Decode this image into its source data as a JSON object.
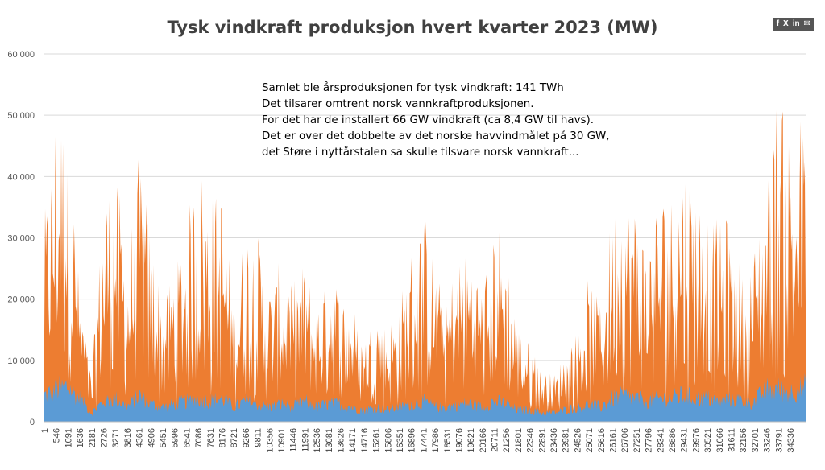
{
  "share": {
    "icons": [
      "f",
      "X",
      "in",
      "✉"
    ],
    "icon_names": [
      "facebook-icon",
      "x-icon",
      "linkedin-icon",
      "mail-icon"
    ]
  },
  "chart_data": {
    "type": "area",
    "title": "Tysk vindkraft produksjon hvert kvarter 2023 (MW)",
    "ylim": [
      0,
      60000
    ],
    "yticks": [
      "0",
      "10 000",
      "20 000",
      "30 000",
      "40 000",
      "50 000",
      "60 000"
    ],
    "ytick_values": [
      0,
      10000,
      20000,
      30000,
      40000,
      50000,
      60000
    ],
    "xlim": [
      1,
      35040
    ],
    "xticks": [
      "1",
      "546",
      "1091",
      "1636",
      "2181",
      "2726",
      "3271",
      "3816",
      "4361",
      "4906",
      "5451",
      "5996",
      "6541",
      "7086",
      "7631",
      "8176",
      "8721",
      "9266",
      "9811",
      "10356",
      "10901",
      "11446",
      "11991",
      "12536",
      "13081",
      "13626",
      "14171",
      "14716",
      "15261",
      "15806",
      "16351",
      "16896",
      "17441",
      "17986",
      "18531",
      "19076",
      "19621",
      "20166",
      "20711",
      "21256",
      "21801",
      "22346",
      "22891",
      "23436",
      "23981",
      "24526",
      "25071",
      "25616",
      "26161",
      "26706",
      "27251",
      "27796",
      "28341",
      "28886",
      "29431",
      "29976",
      "30521",
      "31066",
      "31611",
      "32156",
      "32701",
      "33246",
      "33791",
      "34336"
    ],
    "grid": true,
    "stacked": true,
    "series": [
      {
        "color": "#5b9bd5",
        "x": [
          1,
          546,
          1091,
          1636,
          2181,
          2726,
          3271,
          3816,
          4361,
          4906,
          5451,
          5996,
          6541,
          7086,
          7631,
          8176,
          8721,
          9266,
          9811,
          10356,
          10901,
          11446,
          11991,
          12536,
          13081,
          13626,
          14171,
          14716,
          15261,
          15806,
          16351,
          16896,
          17441,
          17986,
          18531,
          19076,
          19621,
          20166,
          20711,
          21256,
          21801,
          22346,
          22891,
          23436,
          23981,
          24526,
          25071,
          25616,
          26161,
          26706,
          27251,
          27796,
          28341,
          28886,
          29431,
          29976,
          30521,
          31066,
          31611,
          32156,
          32701,
          33246,
          33791,
          34336,
          35040
        ],
        "values": [
          4500,
          5500,
          6000,
          4000,
          1500,
          3500,
          4000,
          2500,
          4500,
          3000,
          2500,
          3000,
          3500,
          4000,
          3500,
          4000,
          2500,
          3500,
          3000,
          2500,
          3000,
          2500,
          3500,
          2500,
          3000,
          3000,
          2500,
          2000,
          2500,
          2000,
          2500,
          3000,
          3500,
          2500,
          2500,
          3000,
          3000,
          2500,
          3500,
          3000,
          2000,
          2000,
          1500,
          1500,
          2000,
          2500,
          3000,
          2500,
          4000,
          4500,
          4000,
          3500,
          4000,
          4000,
          4500,
          4000,
          4000,
          3500,
          4000,
          3500,
          3500,
          5500,
          5500,
          5000,
          6000
        ]
      },
      {
        "color": "#ed7d31",
        "x": [
          1,
          546,
          1091,
          1636,
          2181,
          2726,
          3271,
          3816,
          4361,
          4906,
          5451,
          5996,
          6541,
          7086,
          7631,
          8176,
          8721,
          9266,
          9811,
          10356,
          10901,
          11446,
          11991,
          12536,
          13081,
          13626,
          14171,
          14716,
          15261,
          15806,
          16351,
          16896,
          17441,
          17986,
          18531,
          19076,
          19621,
          20166,
          20711,
          21256,
          21801,
          22346,
          22891,
          23436,
          23981,
          24526,
          25071,
          25616,
          26161,
          26706,
          27251,
          27796,
          28341,
          28886,
          29431,
          29976,
          30521,
          31066,
          31611,
          32156,
          32701,
          33246,
          33791,
          34336,
          35040
        ],
        "values": [
          25000,
          40000,
          40000,
          15000,
          5000,
          30000,
          35000,
          20000,
          35000,
          25000,
          15000,
          20000,
          25000,
          35000,
          30000,
          30000,
          15000,
          25000,
          25000,
          17000,
          20000,
          17000,
          20000,
          15000,
          20000,
          17000,
          15000,
          10000,
          15000,
          12000,
          15000,
          22000,
          28000,
          20000,
          16000,
          23000,
          22000,
          18000,
          26000,
          22000,
          12000,
          10000,
          7000,
          5000,
          8000,
          12000,
          18000,
          15000,
          28000,
          30000,
          28000,
          22000,
          30000,
          30000,
          35000,
          32000,
          28000,
          26000,
          25000,
          20000,
          22000,
          30000,
          44000,
          38000,
          38000
        ]
      }
    ]
  }
}
